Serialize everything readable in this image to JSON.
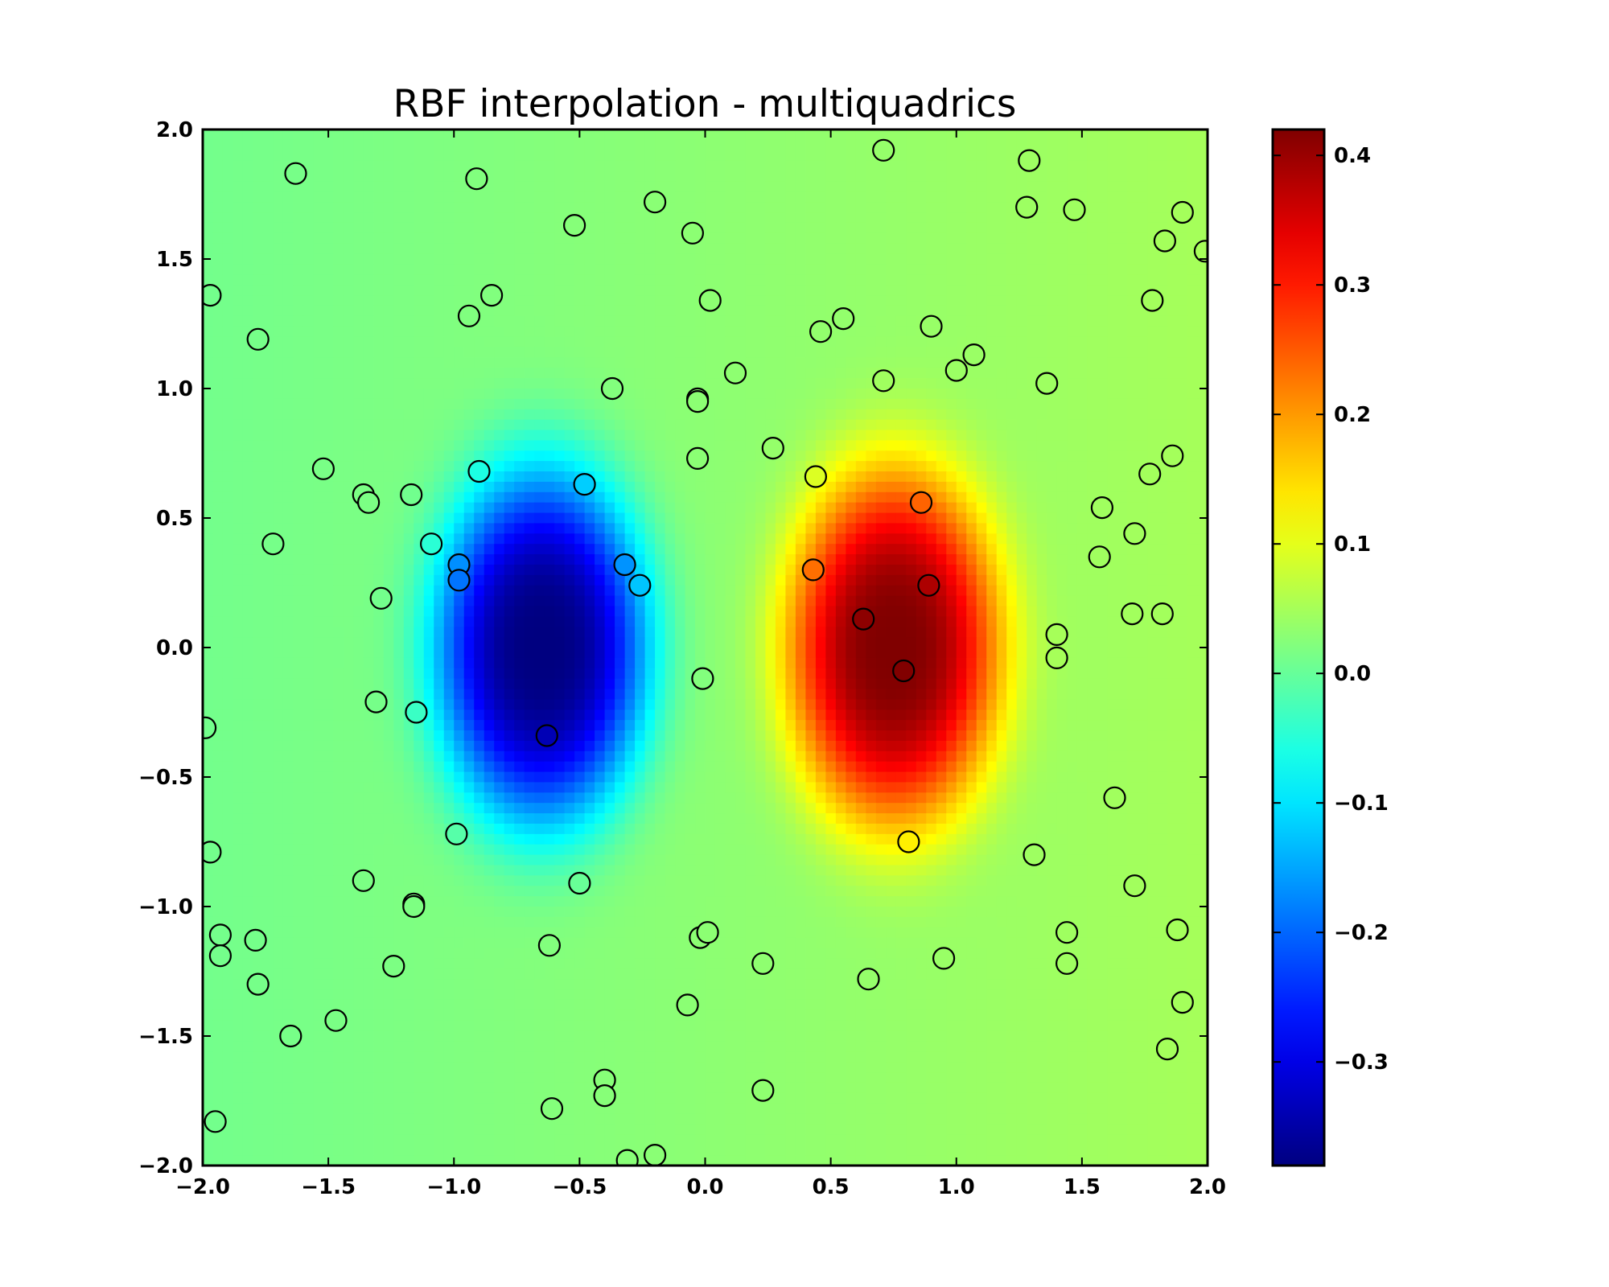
{
  "chart_data": {
    "type": "heatmap",
    "title": "RBF interpolation - multiquadrics",
    "xlabel": "",
    "ylabel": "",
    "xlim": [
      -2.0,
      2.0
    ],
    "ylim": [
      -2.0,
      2.0
    ],
    "x_ticks": [
      -2.0,
      -1.5,
      -1.0,
      -0.5,
      0.0,
      0.5,
      1.0,
      1.5,
      2.0
    ],
    "y_ticks": [
      -2.0,
      -1.5,
      -1.0,
      -0.5,
      0.0,
      0.5,
      1.0,
      1.5,
      2.0
    ],
    "x_tick_labels": [
      "−2.0",
      "−1.5",
      "−1.0",
      "−0.5",
      "0.0",
      "0.5",
      "1.0",
      "1.5",
      "2.0"
    ],
    "y_tick_labels": [
      "−2.0",
      "−1.5",
      "−1.0",
      "−0.5",
      "0.0",
      "0.5",
      "1.0",
      "1.5",
      "2.0"
    ],
    "grid": false,
    "colormap": "jet",
    "colorbar": {
      "vmin": -0.38,
      "vmax": 0.42,
      "ticks": [
        -0.3,
        -0.2,
        -0.1,
        0.0,
        0.1,
        0.2,
        0.3,
        0.4
      ],
      "tick_labels": [
        "−0.3",
        "−0.2",
        "−0.1",
        "0.0",
        "0.1",
        "0.2",
        "0.3",
        "0.4"
      ]
    },
    "surface_grid": {
      "x_range": [
        -2.0,
        2.0
      ],
      "y_range": [
        -2.0,
        2.0
      ],
      "nx": 100,
      "ny": 100,
      "peak": {
        "x": 0.75,
        "y": 0.0,
        "value": 0.42
      },
      "trough": {
        "x": -0.65,
        "y": 0.0,
        "value": -0.38
      }
    },
    "points": [
      {
        "x": -1.63,
        "y": 1.83
      },
      {
        "x": -0.91,
        "y": 1.81
      },
      {
        "x": -0.52,
        "y": 1.63
      },
      {
        "x": -0.2,
        "y": 1.72
      },
      {
        "x": -0.05,
        "y": 1.6
      },
      {
        "x": 0.71,
        "y": 1.92
      },
      {
        "x": 1.29,
        "y": 1.88
      },
      {
        "x": 1.28,
        "y": 1.7
      },
      {
        "x": 1.47,
        "y": 1.69
      },
      {
        "x": 1.9,
        "y": 1.68
      },
      {
        "x": 1.83,
        "y": 1.57
      },
      {
        "x": 1.99,
        "y": 1.53
      },
      {
        "x": -1.97,
        "y": 1.36
      },
      {
        "x": -0.94,
        "y": 1.28
      },
      {
        "x": -0.85,
        "y": 1.36
      },
      {
        "x": 0.02,
        "y": 1.34
      },
      {
        "x": 1.78,
        "y": 1.34
      },
      {
        "x": -1.78,
        "y": 1.19
      },
      {
        "x": 0.46,
        "y": 1.22
      },
      {
        "x": 0.55,
        "y": 1.27
      },
      {
        "x": 0.9,
        "y": 1.24
      },
      {
        "x": 0.12,
        "y": 1.06
      },
      {
        "x": 1.0,
        "y": 1.07
      },
      {
        "x": 1.07,
        "y": 1.13
      },
      {
        "x": -0.37,
        "y": 1.0
      },
      {
        "x": -0.03,
        "y": 0.96
      },
      {
        "x": -0.03,
        "y": 0.95
      },
      {
        "x": 0.71,
        "y": 1.03
      },
      {
        "x": 1.36,
        "y": 1.02
      },
      {
        "x": 0.27,
        "y": 0.77
      },
      {
        "x": -0.03,
        "y": 0.73
      },
      {
        "x": 1.86,
        "y": 0.74
      },
      {
        "x": -1.52,
        "y": 0.69
      },
      {
        "x": -0.9,
        "y": 0.68
      },
      {
        "x": 0.44,
        "y": 0.66
      },
      {
        "x": 1.77,
        "y": 0.67
      },
      {
        "x": -0.48,
        "y": 0.63
      },
      {
        "x": -1.36,
        "y": 0.59
      },
      {
        "x": -1.34,
        "y": 0.56
      },
      {
        "x": -1.17,
        "y": 0.59
      },
      {
        "x": 0.86,
        "y": 0.56
      },
      {
        "x": 1.58,
        "y": 0.54
      },
      {
        "x": 1.71,
        "y": 0.44
      },
      {
        "x": -1.72,
        "y": 0.4
      },
      {
        "x": -1.09,
        "y": 0.4
      },
      {
        "x": -0.98,
        "y": 0.32
      },
      {
        "x": -0.98,
        "y": 0.26
      },
      {
        "x": -0.32,
        "y": 0.32
      },
      {
        "x": -0.26,
        "y": 0.24
      },
      {
        "x": 0.43,
        "y": 0.3
      },
      {
        "x": 0.89,
        "y": 0.24
      },
      {
        "x": 1.57,
        "y": 0.35
      },
      {
        "x": -1.29,
        "y": 0.19
      },
      {
        "x": 0.63,
        "y": 0.11
      },
      {
        "x": 1.7,
        "y": 0.13
      },
      {
        "x": 1.82,
        "y": 0.13
      },
      {
        "x": 1.4,
        "y": 0.05
      },
      {
        "x": 1.4,
        "y": -0.04
      },
      {
        "x": -0.01,
        "y": -0.12
      },
      {
        "x": 0.79,
        "y": -0.09
      },
      {
        "x": -1.31,
        "y": -0.21
      },
      {
        "x": -1.15,
        "y": -0.25
      },
      {
        "x": -0.63,
        "y": -0.34
      },
      {
        "x": -1.99,
        "y": -0.31
      },
      {
        "x": 1.63,
        "y": -0.58
      },
      {
        "x": -0.99,
        "y": -0.72
      },
      {
        "x": 0.81,
        "y": -0.75
      },
      {
        "x": -1.97,
        "y": -0.79
      },
      {
        "x": 1.31,
        "y": -0.8
      },
      {
        "x": -1.36,
        "y": -0.9
      },
      {
        "x": -0.5,
        "y": -0.91
      },
      {
        "x": 1.71,
        "y": -0.92
      },
      {
        "x": -1.16,
        "y": -0.99
      },
      {
        "x": -1.16,
        "y": -1.0
      },
      {
        "x": -1.93,
        "y": -1.11
      },
      {
        "x": -1.93,
        "y": -1.19
      },
      {
        "x": -1.79,
        "y": -1.13
      },
      {
        "x": -0.62,
        "y": -1.15
      },
      {
        "x": -0.02,
        "y": -1.12
      },
      {
        "x": 0.01,
        "y": -1.1
      },
      {
        "x": 1.44,
        "y": -1.1
      },
      {
        "x": 1.88,
        "y": -1.09
      },
      {
        "x": -1.24,
        "y": -1.23
      },
      {
        "x": 0.23,
        "y": -1.22
      },
      {
        "x": 0.95,
        "y": -1.2
      },
      {
        "x": 1.44,
        "y": -1.22
      },
      {
        "x": -1.78,
        "y": -1.3
      },
      {
        "x": 0.65,
        "y": -1.28
      },
      {
        "x": -0.07,
        "y": -1.38
      },
      {
        "x": 1.9,
        "y": -1.37
      },
      {
        "x": -1.47,
        "y": -1.44
      },
      {
        "x": -1.65,
        "y": -1.5
      },
      {
        "x": 1.84,
        "y": -1.55
      },
      {
        "x": -0.4,
        "y": -1.67
      },
      {
        "x": -0.4,
        "y": -1.73
      },
      {
        "x": 0.23,
        "y": -1.71
      },
      {
        "x": -0.61,
        "y": -1.78
      },
      {
        "x": -1.95,
        "y": -1.83
      },
      {
        "x": -0.31,
        "y": -1.98
      },
      {
        "x": -0.2,
        "y": -1.96
      }
    ]
  }
}
